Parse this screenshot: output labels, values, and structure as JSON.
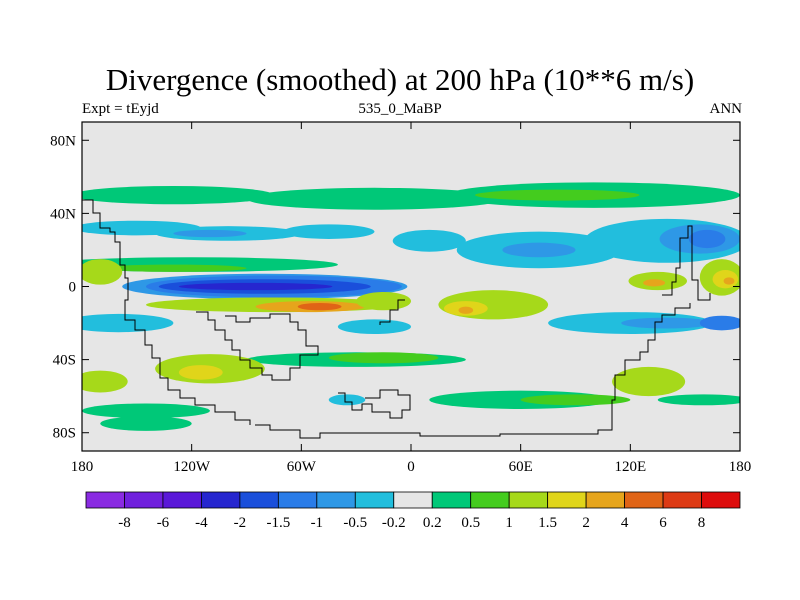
{
  "chart_data": {
    "type": "heatmap",
    "title": "Divergence (smoothed) at 200 hPa (10**6 m/s)",
    "subtitle_left": "Expt = tEyjd",
    "subtitle_center": "535_0_MaBP",
    "subtitle_right": "ANN",
    "x_ticks": [
      {
        "value": -180,
        "label": "180"
      },
      {
        "value": -120,
        "label": "120W"
      },
      {
        "value": -60,
        "label": "60W"
      },
      {
        "value": 0,
        "label": "0"
      },
      {
        "value": 60,
        "label": "60E"
      },
      {
        "value": 120,
        "label": "120E"
      },
      {
        "value": 180,
        "label": "180"
      }
    ],
    "y_ticks": [
      {
        "value": 80,
        "label": "80N"
      },
      {
        "value": 40,
        "label": "40N"
      },
      {
        "value": 0,
        "label": "0"
      },
      {
        "value": -40,
        "label": "40S"
      },
      {
        "value": -80,
        "label": "80S"
      }
    ],
    "xlim": [
      -180,
      180
    ],
    "ylim": [
      -90,
      90
    ],
    "colorbar": {
      "colors": [
        "#8a2be2",
        "#7020dd",
        "#5a18d8",
        "#2626cf",
        "#1a4fdb",
        "#2a7ce8",
        "#2e98e6",
        "#22bedd",
        "#e6e6e6",
        "#00c878",
        "#44cc1e",
        "#a6d91a",
        "#e0d51a",
        "#e6a51c",
        "#e06416",
        "#dd3a14",
        "#dd0c0c"
      ],
      "labels": [
        "-8",
        "-6",
        "-4",
        "-2",
        "-1.5",
        "-1",
        "-0.5",
        "-0.2",
        "0.2",
        "0.5",
        "1",
        "1.5",
        "2",
        "4",
        "6",
        "8"
      ]
    },
    "regions": [
      {
        "level": 9,
        "lon": -130,
        "lat": 50,
        "rlon": 55,
        "rlat": 5
      },
      {
        "level": 9,
        "lon": -20,
        "lat": 48,
        "rlon": 70,
        "rlat": 6
      },
      {
        "level": 9,
        "lon": 100,
        "lat": 50,
        "rlon": 80,
        "rlat": 7
      },
      {
        "level": 10,
        "lon": 80,
        "lat": 50,
        "rlon": 45,
        "rlat": 3
      },
      {
        "level": 7,
        "lon": -150,
        "lat": 32,
        "rlon": 35,
        "rlat": 4
      },
      {
        "level": 7,
        "lon": -100,
        "lat": 29,
        "rlon": 40,
        "rlat": 4
      },
      {
        "level": 6,
        "lon": -110,
        "lat": 29,
        "rlon": 20,
        "rlat": 2
      },
      {
        "level": 7,
        "lon": -45,
        "lat": 30,
        "rlon": 25,
        "rlat": 4
      },
      {
        "level": 7,
        "lon": 140,
        "lat": 25,
        "rlon": 45,
        "rlat": 12
      },
      {
        "level": 6,
        "lon": 158,
        "lat": 26,
        "rlon": 22,
        "rlat": 8
      },
      {
        "level": 5,
        "lon": 162,
        "lat": 26,
        "rlon": 10,
        "rlat": 5
      },
      {
        "level": 7,
        "lon": 70,
        "lat": 20,
        "rlon": 45,
        "rlat": 10
      },
      {
        "level": 6,
        "lon": 70,
        "lat": 20,
        "rlon": 20,
        "rlat": 4
      },
      {
        "level": 7,
        "lon": 10,
        "lat": 25,
        "rlon": 20,
        "rlat": 6
      },
      {
        "level": 9,
        "lon": -120,
        "lat": 12,
        "rlon": 80,
        "rlat": 4
      },
      {
        "level": 10,
        "lon": -130,
        "lat": 10,
        "rlon": 40,
        "rlat": 2
      },
      {
        "level": 11,
        "lon": -170,
        "lat": 8,
        "rlon": 12,
        "rlat": 7
      },
      {
        "level": 11,
        "lon": 170,
        "lat": 5,
        "rlon": 12,
        "rlat": 10
      },
      {
        "level": 12,
        "lon": 172,
        "lat": 4,
        "rlon": 7,
        "rlat": 5
      },
      {
        "level": 13,
        "lon": 174,
        "lat": 3,
        "rlon": 3,
        "rlat": 2
      },
      {
        "level": 11,
        "lon": 135,
        "lat": 3,
        "rlon": 16,
        "rlat": 5
      },
      {
        "level": 13,
        "lon": 133,
        "lat": 2,
        "rlon": 6,
        "rlat": 2
      },
      {
        "level": 6,
        "lon": -80,
        "lat": 0,
        "rlon": 78,
        "rlat": 7
      },
      {
        "level": 5,
        "lon": -75,
        "lat": 0,
        "rlon": 70,
        "rlat": 6
      },
      {
        "level": 4,
        "lon": -80,
        "lat": 0,
        "rlon": 58,
        "rlat": 4
      },
      {
        "level": 3,
        "lon": -85,
        "lat": 0,
        "rlon": 42,
        "rlat": 2
      },
      {
        "level": 11,
        "lon": -75,
        "lat": -10,
        "rlon": 70,
        "rlat": 4
      },
      {
        "level": 13,
        "lon": -55,
        "lat": -11,
        "rlon": 30,
        "rlat": 3
      },
      {
        "level": 14,
        "lon": -50,
        "lat": -11,
        "rlon": 12,
        "rlat": 2
      },
      {
        "level": 11,
        "lon": 45,
        "lat": -10,
        "rlon": 30,
        "rlat": 8
      },
      {
        "level": 12,
        "lon": 30,
        "lat": -12,
        "rlon": 12,
        "rlat": 4
      },
      {
        "level": 13,
        "lon": 30,
        "lat": -13,
        "rlon": 4,
        "rlat": 2
      },
      {
        "level": 11,
        "lon": -15,
        "lat": -8,
        "rlon": 15,
        "rlat": 5
      },
      {
        "level": 7,
        "lon": 120,
        "lat": -20,
        "rlon": 45,
        "rlat": 6
      },
      {
        "level": 6,
        "lon": 140,
        "lat": -20,
        "rlon": 25,
        "rlat": 3
      },
      {
        "level": 5,
        "lon": 170,
        "lat": -20,
        "rlon": 12,
        "rlat": 4
      },
      {
        "level": 7,
        "lon": -160,
        "lat": -20,
        "rlon": 30,
        "rlat": 5
      },
      {
        "level": 7,
        "lon": -20,
        "lat": -22,
        "rlon": 20,
        "rlat": 4
      },
      {
        "level": 9,
        "lon": -30,
        "lat": -40,
        "rlon": 60,
        "rlat": 4
      },
      {
        "level": 10,
        "lon": -15,
        "lat": -39,
        "rlon": 30,
        "rlat": 3
      },
      {
        "level": 11,
        "lon": -110,
        "lat": -45,
        "rlon": 30,
        "rlat": 8
      },
      {
        "level": 12,
        "lon": -115,
        "lat": -47,
        "rlon": 12,
        "rlat": 4
      },
      {
        "level": 11,
        "lon": 130,
        "lat": -52,
        "rlon": 20,
        "rlat": 8
      },
      {
        "level": 11,
        "lon": -170,
        "lat": -52,
        "rlon": 15,
        "rlat": 6
      },
      {
        "level": 9,
        "lon": 60,
        "lat": -62,
        "rlon": 50,
        "rlat": 5
      },
      {
        "level": 10,
        "lon": 90,
        "lat": -62,
        "rlon": 30,
        "rlat": 3
      },
      {
        "level": 9,
        "lon": -145,
        "lat": -68,
        "rlon": 35,
        "rlat": 4
      },
      {
        "level": 9,
        "lon": -145,
        "lat": -75,
        "rlon": 25,
        "rlat": 4
      },
      {
        "level": 8,
        "lon": -70,
        "lat": -62,
        "rlon": 14,
        "rlat": 4
      },
      {
        "level": 7,
        "lon": -35,
        "lat": -62,
        "rlon": 10,
        "rlat": 3
      },
      {
        "level": 9,
        "lon": 160,
        "lat": -62,
        "rlon": 25,
        "rlat": 3
      }
    ]
  }
}
